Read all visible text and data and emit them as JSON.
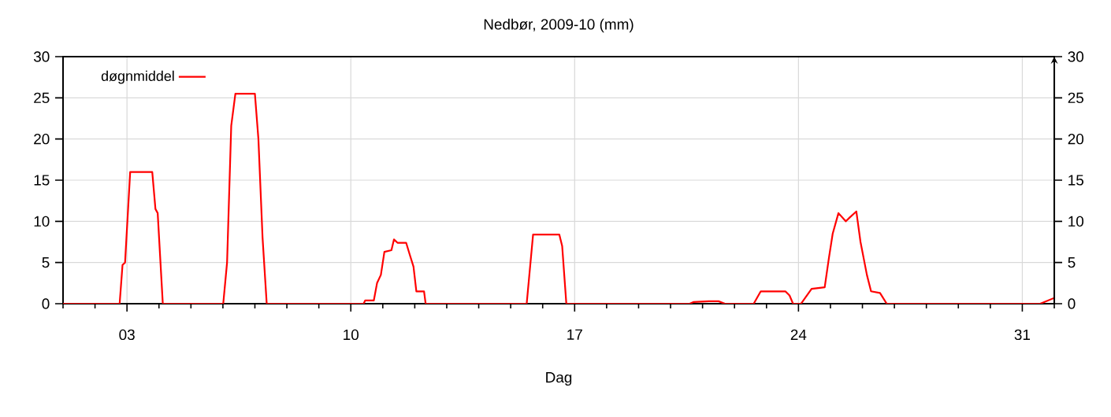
{
  "chart_data": {
    "type": "line",
    "title": "Nedbør, 2009-10 (mm)",
    "xlabel": "Dag",
    "xlim": [
      1,
      32
    ],
    "xticks": [
      {
        "value": 1,
        "label": null
      },
      {
        "value": 2,
        "label": null
      },
      {
        "value": 3,
        "label": "03"
      },
      {
        "value": 4,
        "label": null
      },
      {
        "value": 5,
        "label": null
      },
      {
        "value": 6,
        "label": null
      },
      {
        "value": 7,
        "label": null
      },
      {
        "value": 8,
        "label": null
      },
      {
        "value": 9,
        "label": null
      },
      {
        "value": 10,
        "label": "10"
      },
      {
        "value": 11,
        "label": null
      },
      {
        "value": 12,
        "label": null
      },
      {
        "value": 13,
        "label": null
      },
      {
        "value": 14,
        "label": null
      },
      {
        "value": 15,
        "label": null
      },
      {
        "value": 16,
        "label": null
      },
      {
        "value": 17,
        "label": "17"
      },
      {
        "value": 18,
        "label": null
      },
      {
        "value": 19,
        "label": null
      },
      {
        "value": 20,
        "label": null
      },
      {
        "value": 21,
        "label": null
      },
      {
        "value": 22,
        "label": null
      },
      {
        "value": 23,
        "label": null
      },
      {
        "value": 24,
        "label": "24"
      },
      {
        "value": 25,
        "label": null
      },
      {
        "value": 26,
        "label": null
      },
      {
        "value": 27,
        "label": null
      },
      {
        "value": 28,
        "label": null
      },
      {
        "value": 29,
        "label": null
      },
      {
        "value": 30,
        "label": null
      },
      {
        "value": 31,
        "label": "31"
      },
      {
        "value": 32,
        "label": null
      }
    ],
    "ylim": [
      0,
      30
    ],
    "yticks": [
      0,
      5,
      10,
      15,
      20,
      25,
      30
    ],
    "y2lim": [
      0,
      30
    ],
    "y2ticks": [
      0,
      5,
      10,
      15,
      20,
      25,
      30
    ],
    "grid": true,
    "legend": "top left",
    "marker": "none",
    "line_style": "solid",
    "series": [
      {
        "name": "døgnmiddel",
        "color": "#ff0000",
        "x": [
          1,
          2.77,
          2.86,
          2.94,
          3.1,
          3.79,
          3.89,
          3.96,
          4.12,
          6.01,
          6.13,
          6.26,
          6.39,
          7.0,
          7.11,
          7.24,
          7.37,
          10.4,
          10.45,
          10.72,
          10.82,
          10.94,
          11.05,
          11.27,
          11.35,
          11.46,
          11.73,
          11.84,
          11.96,
          12.05,
          12.29,
          12.34,
          15.5,
          15.7,
          16.52,
          16.61,
          16.74,
          20.6,
          20.71,
          21.2,
          21.5,
          21.7,
          22.6,
          22.82,
          23.59,
          23.72,
          23.83,
          24.08,
          24.41,
          24.82,
          24.95,
          25.07,
          25.25,
          25.48,
          25.61,
          25.81,
          25.94,
          26.14,
          26.27,
          26.55,
          26.76,
          31.56,
          32.0
        ],
        "values": [
          0,
          0,
          4.7,
          5,
          16,
          16,
          11.5,
          11,
          0,
          0,
          5,
          21.6,
          25.5,
          25.5,
          20,
          8,
          0,
          0,
          0.4,
          0.4,
          2.5,
          3.5,
          6.3,
          6.5,
          7.8,
          7.4,
          7.4,
          6,
          4.5,
          1.5,
          1.5,
          0,
          0,
          8.4,
          8.4,
          7,
          0,
          0,
          0.2,
          0.3,
          0.3,
          0,
          0,
          1.5,
          1.5,
          1,
          0,
          0,
          1.8,
          2,
          5.5,
          8.5,
          11,
          10,
          10.5,
          11.2,
          7.5,
          3.5,
          1.5,
          1.3,
          0,
          0,
          0.7
        ]
      }
    ]
  }
}
